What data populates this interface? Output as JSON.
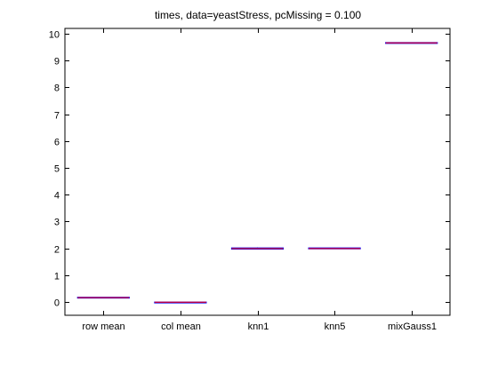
{
  "chart_data": {
    "type": "box",
    "title": "times, data=yeastStress, pcMissing = 0.100",
    "xlabel": "",
    "ylabel": "",
    "categories": [
      "row mean",
      "col mean",
      "knn1",
      "knn5",
      "mixGauss1"
    ],
    "ylim": [
      -0.5,
      10.2
    ],
    "yticks": [
      0,
      1,
      2,
      3,
      4,
      5,
      6,
      7,
      8,
      9,
      10
    ],
    "boxes": [
      {
        "category": "row mean",
        "min": 0.16,
        "q1": 0.16,
        "median": 0.16,
        "q3": 0.17,
        "max": 0.17
      },
      {
        "category": "col mean",
        "min": -0.01,
        "q1": -0.01,
        "median": -0.01,
        "q3": -0.01,
        "max": -0.01
      },
      {
        "category": "knn1",
        "min": 1.96,
        "q1": 1.97,
        "median": 1.99,
        "q3": 2.01,
        "max": 2.03
      },
      {
        "category": "knn5",
        "min": 1.98,
        "q1": 1.98,
        "median": 1.99,
        "q3": 2.01,
        "max": 2.02
      },
      {
        "category": "mixGauss1",
        "min": 9.66,
        "q1": 9.66,
        "median": 9.66,
        "q3": 9.67,
        "max": 9.67
      }
    ],
    "grid": false,
    "median_color": "#ff0000",
    "box_color": "#0000ff",
    "axis_color": "#000000"
  }
}
